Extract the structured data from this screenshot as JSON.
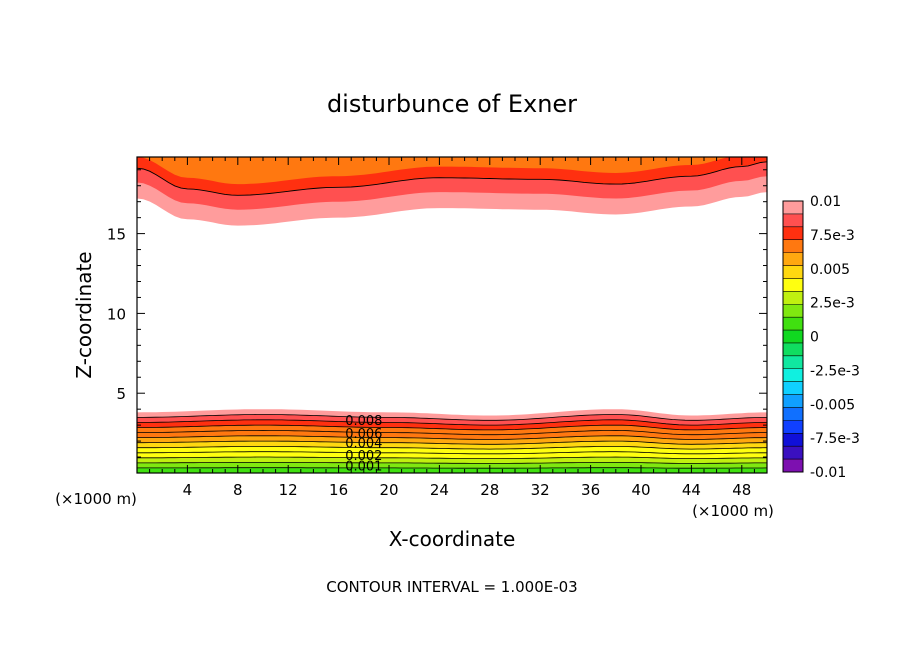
{
  "chart_data": {
    "type": "heatmap",
    "title": "disturbunce of Exner",
    "xlabel": "X-coordinate",
    "ylabel": "Z-coordinate",
    "x_unit": "(×1000 m)",
    "xlim": [
      0,
      50
    ],
    "ylim": [
      0,
      19.8
    ],
    "x_ticks": [
      4,
      8,
      12,
      16,
      20,
      24,
      28,
      32,
      36,
      40,
      44,
      48
    ],
    "y_ticks": [
      5,
      10,
      15
    ],
    "footer": "CONTOUR INTERVAL = 1.000E-03",
    "contour_labels": [
      {
        "text": "0.008",
        "x": 18,
        "y": 3.0
      },
      {
        "text": "0.006",
        "x": 18,
        "y": 2.2
      },
      {
        "text": "0.004",
        "x": 18,
        "y": 1.6
      },
      {
        "text": "0.002",
        "x": 18,
        "y": 0.8
      },
      {
        "text": "0.001",
        "x": 18,
        "y": 0.15
      }
    ],
    "colorbar": {
      "labels": [
        "0.01",
        "7.5e-3",
        "0.005",
        "2.5e-3",
        "0",
        "-2.5e-3",
        "-0.005",
        "-7.5e-3",
        "-0.01"
      ],
      "levels": [
        -0.01,
        -0.009,
        -0.008,
        -0.007,
        -0.006,
        -0.005,
        -0.004,
        -0.003,
        -0.002,
        -0.001,
        0,
        0.001,
        0.002,
        0.003,
        0.004,
        0.005,
        0.006,
        0.007,
        0.008,
        0.009,
        0.01
      ],
      "colors": [
        "#7d10b0",
        "#3a10c0",
        "#1010d8",
        "#1040ff",
        "#1070ff",
        "#10a0ff",
        "#10d0ff",
        "#10f0e0",
        "#10e8a0",
        "#10dd60",
        "#10d820",
        "#40e010",
        "#80e810",
        "#c0f010",
        "#ffff10",
        "#ffd810",
        "#ffa810",
        "#ff7810",
        "#ff3010",
        "#ff5050",
        "#ff9c9c"
      ]
    },
    "field": {
      "top_band": {
        "bottom_boundary": [
          [
            0,
            17.2
          ],
          [
            4,
            15.9
          ],
          [
            8,
            15.5
          ],
          [
            16,
            16.0
          ],
          [
            24,
            16.6
          ],
          [
            32,
            16.5
          ],
          [
            38,
            16.2
          ],
          [
            44,
            16.7
          ],
          [
            48,
            17.3
          ],
          [
            50,
            17.6
          ]
        ],
        "value_at_top": 0.01
      },
      "bottom_band": {
        "top_boundary": [
          [
            0,
            3.8
          ],
          [
            10,
            4.0
          ],
          [
            20,
            3.8
          ],
          [
            28,
            3.6
          ],
          [
            38,
            4.0
          ],
          [
            44,
            3.6
          ],
          [
            50,
            3.8
          ]
        ],
        "value_at_bottom": 0.001
      }
    }
  }
}
